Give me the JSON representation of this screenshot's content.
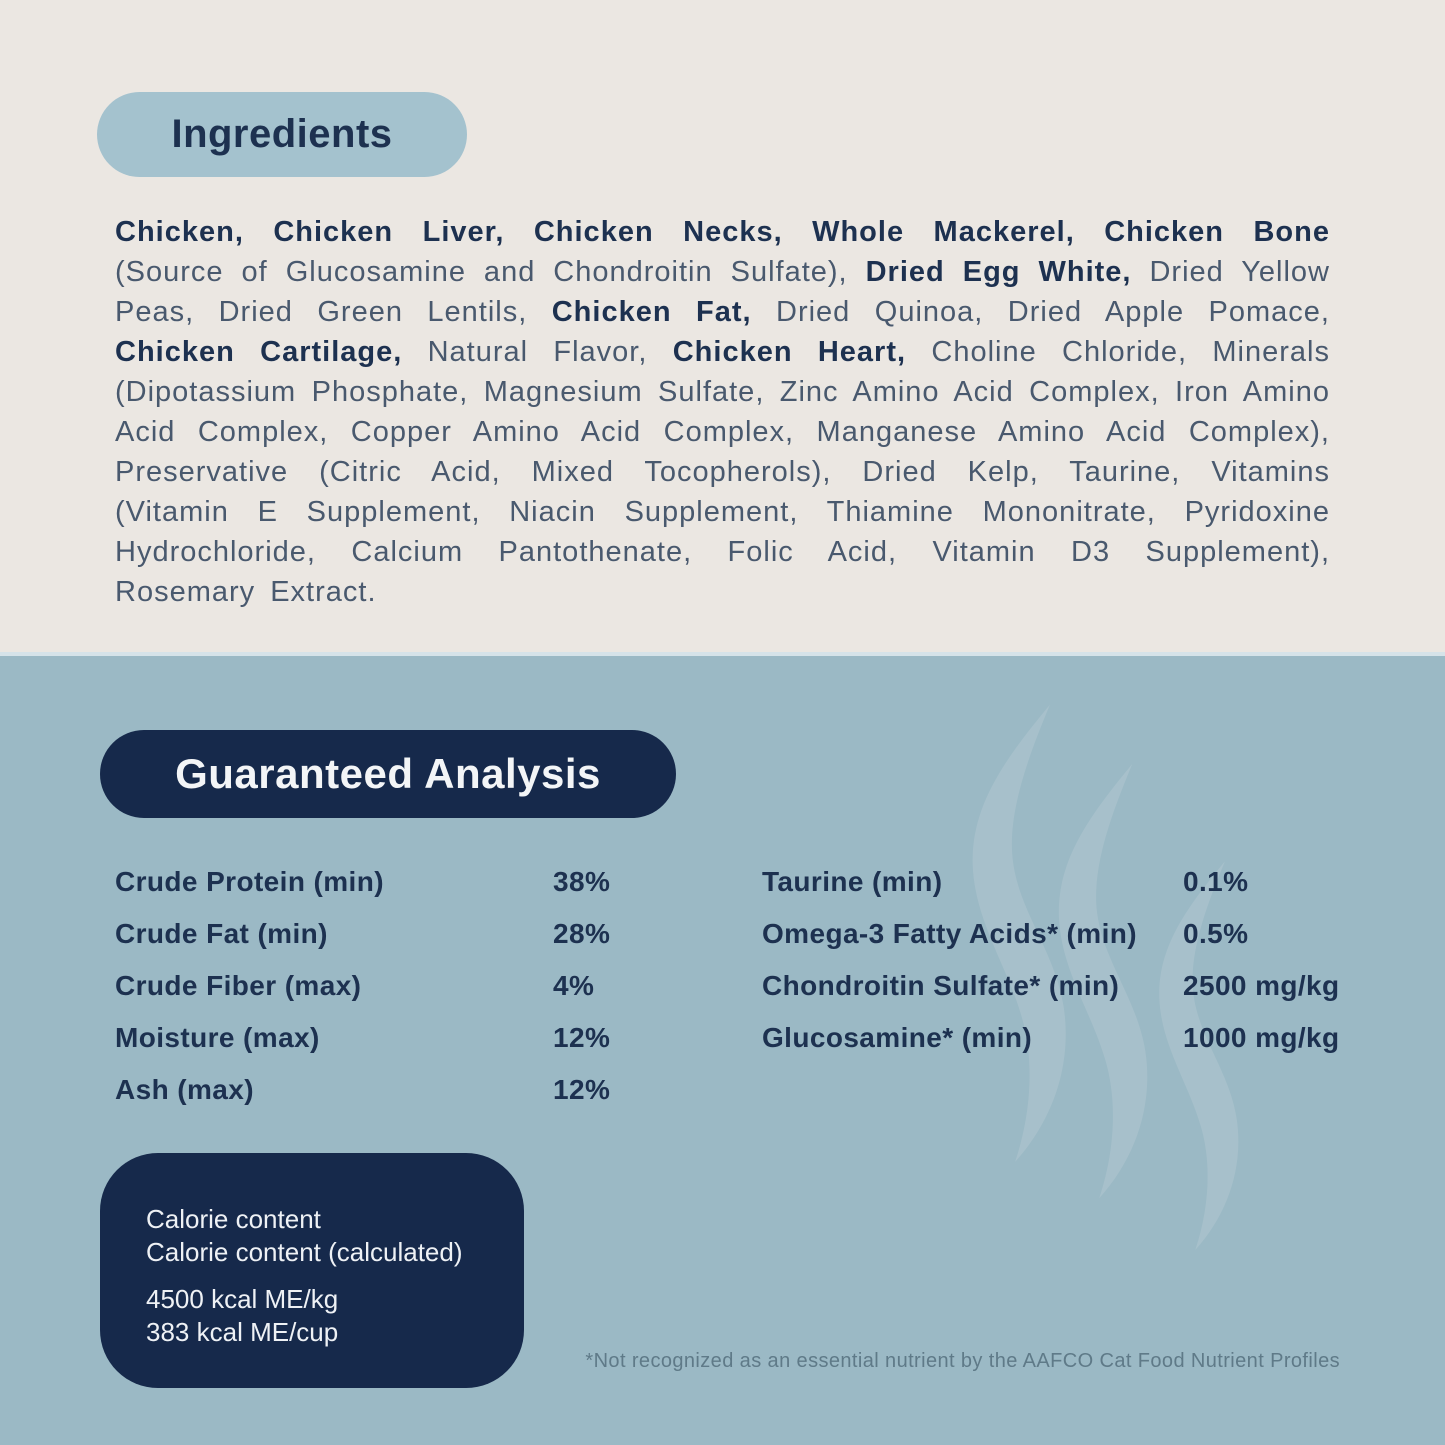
{
  "colors": {
    "top_bg": "#ebe7e2",
    "bottom_bg": "#9bb9c5",
    "pill_light_bg": "#a4c2ce",
    "navy": "#16294b",
    "text_navy": "#1d3150",
    "text_regular": "#49596e",
    "footnote": "#5f7a88",
    "watermark": "#b0c7cf"
  },
  "ingredients": {
    "title": "Ingredients",
    "segments": [
      {
        "text": "Chicken, Chicken Liver, Chicken Necks, Whole Mackerel, Chicken Bone ",
        "bold": true
      },
      {
        "text": "(Source of Glucosamine and Chondroitin Sulfate), ",
        "bold": false
      },
      {
        "text": "Dried Egg White, ",
        "bold": true
      },
      {
        "text": "Dried Yellow Peas, Dried Green Lentils, ",
        "bold": false
      },
      {
        "text": "Chicken Fat, ",
        "bold": true
      },
      {
        "text": "Dried Quinoa, Dried Apple Pomace, ",
        "bold": false
      },
      {
        "text": "Chicken Cartilage, ",
        "bold": true
      },
      {
        "text": "Natural Flavor, ",
        "bold": false
      },
      {
        "text": "Chicken Heart, ",
        "bold": true
      },
      {
        "text": "Choline Chloride, Minerals (Dipotassium Phosphate, Magnesium Sulfate, Zinc Amino Acid Complex, Iron Amino Acid Complex, Copper Amino Acid Complex, Manganese Amino Acid Complex), Preservative (Citric Acid, Mixed Tocopherols), Dried Kelp, Taurine, Vitamins (Vitamin E Supplement, Niacin Supplement, Thiamine Mononitrate, Pyridoxine Hydrochloride, Calcium Pantothenate, Folic Acid, Vitamin D3 Supplement), Rosemary Extract.",
        "bold": false
      }
    ]
  },
  "analysis": {
    "title": "Guaranteed Analysis",
    "left_rows": [
      {
        "label": "Crude Protein (min)",
        "value": "38%"
      },
      {
        "label": "Crude Fat (min)",
        "value": "28%"
      },
      {
        "label": "Crude Fiber (max)",
        "value": "4%"
      },
      {
        "label": "Moisture (max)",
        "value": "12%"
      },
      {
        "label": "Ash (max)",
        "value": "12%"
      }
    ],
    "right_rows": [
      {
        "label": "Taurine (min)",
        "value": "0.1%"
      },
      {
        "label": "Omega-3 Fatty Acids* (min)",
        "value": "0.5%"
      },
      {
        "label": "Chondroitin Sulfate* (min)",
        "value": "2500 mg/kg"
      },
      {
        "label": "Glucosamine* (min)",
        "value": "1000 mg/kg"
      }
    ],
    "footnote": "*Not recognized as an essential nutrient by the AAFCO Cat Food Nutrient Profiles"
  },
  "calorie": {
    "lines": [
      "Calorie content",
      "Calorie content (calculated)"
    ],
    "values": [
      "4500 kcal ME/kg",
      "383 kcal ME/cup"
    ]
  }
}
